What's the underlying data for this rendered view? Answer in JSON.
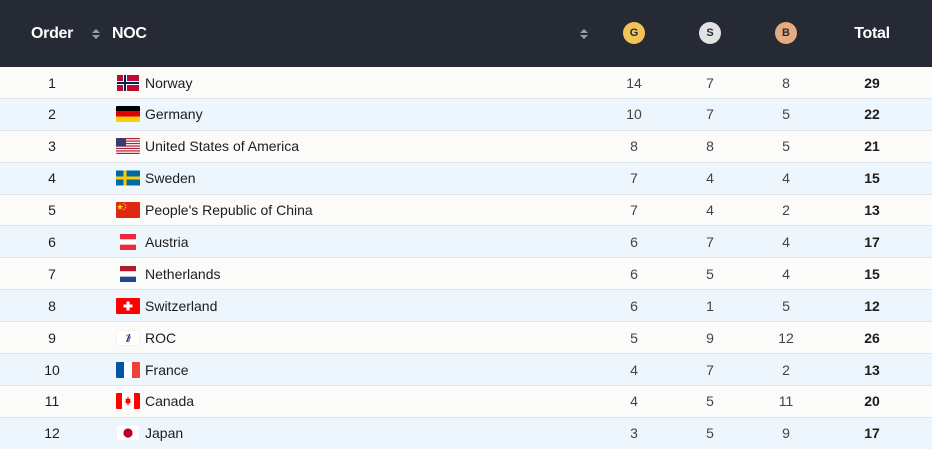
{
  "header": {
    "order_label": "Order",
    "noc_label": "NOC",
    "gold_label": "G",
    "silver_label": "S",
    "bronze_label": "B",
    "total_label": "Total",
    "colors": {
      "background": "#262a35",
      "gold": "#f3c356",
      "silver": "#e3e3e3",
      "bronze": "#e6ab80"
    }
  },
  "rows": [
    {
      "order": "1",
      "noc": "Norway",
      "flag": "norway-flag-icon",
      "gold": "14",
      "silver": "7",
      "bronze": "8",
      "total": "29"
    },
    {
      "order": "2",
      "noc": "Germany",
      "flag": "germany-flag-icon",
      "gold": "10",
      "silver": "7",
      "bronze": "5",
      "total": "22"
    },
    {
      "order": "3",
      "noc": "United States of America",
      "flag": "usa-flag-icon",
      "gold": "8",
      "silver": "8",
      "bronze": "5",
      "total": "21"
    },
    {
      "order": "4",
      "noc": "Sweden",
      "flag": "sweden-flag-icon",
      "gold": "7",
      "silver": "4",
      "bronze": "4",
      "total": "15"
    },
    {
      "order": "5",
      "noc": "People's Republic of China",
      "flag": "china-flag-icon",
      "gold": "7",
      "silver": "4",
      "bronze": "2",
      "total": "13"
    },
    {
      "order": "6",
      "noc": "Austria",
      "flag": "austria-flag-icon",
      "gold": "6",
      "silver": "7",
      "bronze": "4",
      "total": "17"
    },
    {
      "order": "7",
      "noc": "Netherlands",
      "flag": "netherlands-flag-icon",
      "gold": "6",
      "silver": "5",
      "bronze": "4",
      "total": "15"
    },
    {
      "order": "8",
      "noc": "Switzerland",
      "flag": "switzerland-flag-icon",
      "gold": "6",
      "silver": "1",
      "bronze": "5",
      "total": "12"
    },
    {
      "order": "9",
      "noc": "ROC",
      "flag": "roc-flag-icon",
      "gold": "5",
      "silver": "9",
      "bronze": "12",
      "total": "26"
    },
    {
      "order": "10",
      "noc": "France",
      "flag": "france-flag-icon",
      "gold": "4",
      "silver": "7",
      "bronze": "2",
      "total": "13"
    },
    {
      "order": "11",
      "noc": "Canada",
      "flag": "canada-flag-icon",
      "gold": "4",
      "silver": "5",
      "bronze": "11",
      "total": "20"
    },
    {
      "order": "12",
      "noc": "Japan",
      "flag": "japan-flag-icon",
      "gold": "3",
      "silver": "5",
      "bronze": "9",
      "total": "17"
    }
  ]
}
